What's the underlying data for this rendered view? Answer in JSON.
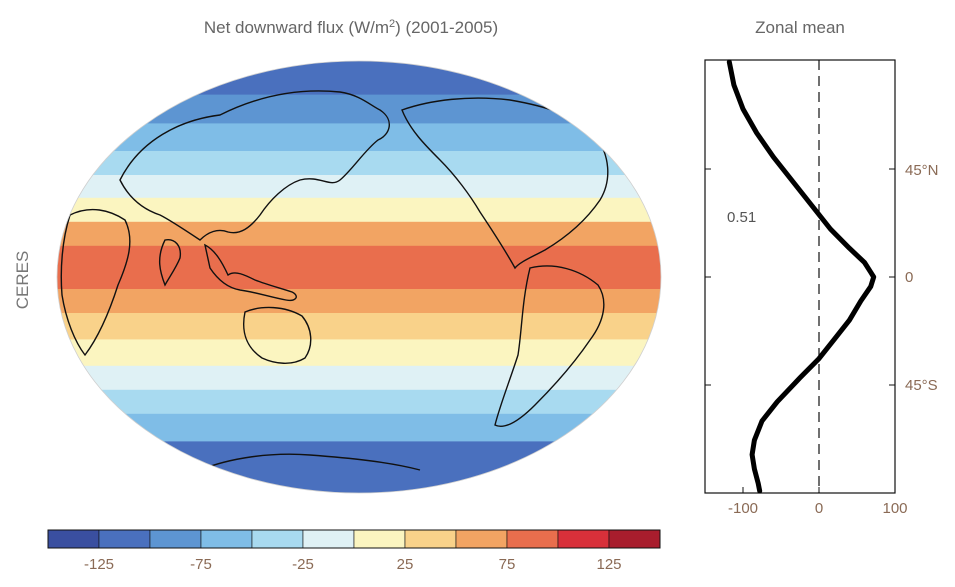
{
  "map_title_prefix": "Net downward flux (W/m",
  "map_title_sup": "2",
  "map_title_suffix": ") (2001-2005)",
  "row_label": "CERES",
  "zonal_title": "Zonal mean",
  "annotation": "0.51",
  "colors": {
    "bins": [
      "#3a4fa0",
      "#4a70be",
      "#5d95d2",
      "#7fbde7",
      "#a8daf0",
      "#dff1f5",
      "#fbf5c0",
      "#f9d28a",
      "#f2a463",
      "#e96e4d",
      "#d8303a",
      "#a81d2d"
    ]
  },
  "colorbar": {
    "ticks": [
      "-125",
      "-75",
      "-25",
      "25",
      "75",
      "125"
    ]
  },
  "chart_data": [
    {
      "type": "heatmap",
      "title": "Net downward flux (W/m2) (2001-2005)",
      "colorbar_range": [
        -150,
        150
      ],
      "colorbar_step": 25,
      "colorbar_ticks": [
        -125,
        -75,
        -25,
        25,
        75,
        125
      ],
      "bands_by_latitude": [
        {
          "lat": 82,
          "value": -125
        },
        {
          "lat": 70,
          "value": -100
        },
        {
          "lat": 58,
          "value": -75
        },
        {
          "lat": 47,
          "value": -50
        },
        {
          "lat": 38,
          "value": -10
        },
        {
          "lat": 28,
          "value": 20
        },
        {
          "lat": 18,
          "value": 50
        },
        {
          "lat": 8,
          "value": 75
        },
        {
          "lat": 0,
          "value": 80
        },
        {
          "lat": -10,
          "value": 60
        },
        {
          "lat": -20,
          "value": 35
        },
        {
          "lat": -32,
          "value": 10
        },
        {
          "lat": -42,
          "value": -20
        },
        {
          "lat": -52,
          "value": -40
        },
        {
          "lat": -62,
          "value": -70
        },
        {
          "lat": -75,
          "value": -110
        }
      ]
    },
    {
      "type": "line",
      "title": "Zonal mean",
      "xlim": [
        -150,
        100
      ],
      "xticks": [
        "-100",
        "0",
        "100"
      ],
      "yticks": [
        "45°N",
        "0",
        "45°S"
      ],
      "series": [
        {
          "x": [
            -118,
            -112,
            -100,
            -82,
            -60,
            -35,
            -10,
            15,
            40,
            60,
            68,
            72,
            68,
            55,
            40,
            20,
            0,
            -25,
            -55,
            -75,
            -85,
            -88,
            -85,
            -80,
            -78
          ],
          "y": [
            90,
            80,
            70,
            60,
            50,
            40,
            30,
            20,
            12,
            6,
            2,
            0,
            -4,
            -10,
            -18,
            -26,
            -34,
            -42,
            -52,
            -60,
            -68,
            -74,
            -80,
            -86,
            -90
          ]
        }
      ]
    }
  ]
}
